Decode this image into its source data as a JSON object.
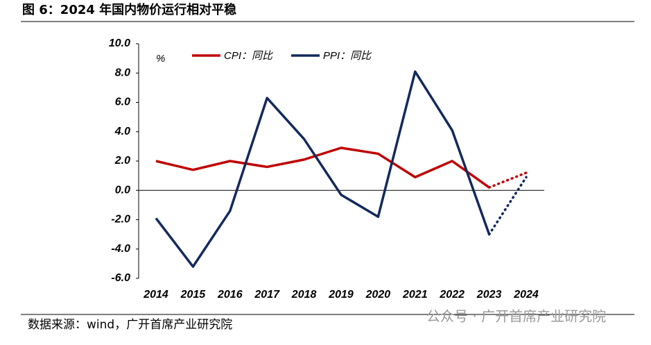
{
  "chart_data": {
    "type": "line",
    "title": "图 6：2024 年国内物价运行相对平稳",
    "source": "数据来源：wind，广开首席产业研究院",
    "watermark": "公众号 · 广开首席产业研究院",
    "unit": "%",
    "categories": [
      "2014",
      "2015",
      "2016",
      "2017",
      "2018",
      "2019",
      "2020",
      "2021",
      "2022",
      "2023",
      "2024"
    ],
    "series": [
      {
        "name": "CPI：同比",
        "color": "#c00000",
        "values": [
          2.0,
          1.4,
          2.0,
          1.6,
          2.1,
          2.9,
          2.5,
          0.9,
          2.0,
          0.2,
          1.2
        ]
      },
      {
        "name": "PPI：同比",
        "color": "#13295e",
        "values": [
          -1.9,
          -5.2,
          -1.4,
          6.3,
          3.5,
          -0.3,
          -1.8,
          8.1,
          4.1,
          -3.0,
          0.9
        ]
      }
    ],
    "dotted_last_segment": true,
    "ylim": [
      -6,
      10
    ],
    "yticks": [
      {
        "value": -6,
        "label": "-6.0"
      },
      {
        "value": -4,
        "label": "-4.0"
      },
      {
        "value": -2,
        "label": "-2.0"
      },
      {
        "value": 0,
        "label": "0.0"
      },
      {
        "value": 2,
        "label": "2.0"
      },
      {
        "value": 4,
        "label": "4.0"
      },
      {
        "value": 6,
        "label": "6.0"
      },
      {
        "value": 8,
        "label": "8.0"
      },
      {
        "value": 10,
        "label": "10.0"
      }
    ]
  }
}
